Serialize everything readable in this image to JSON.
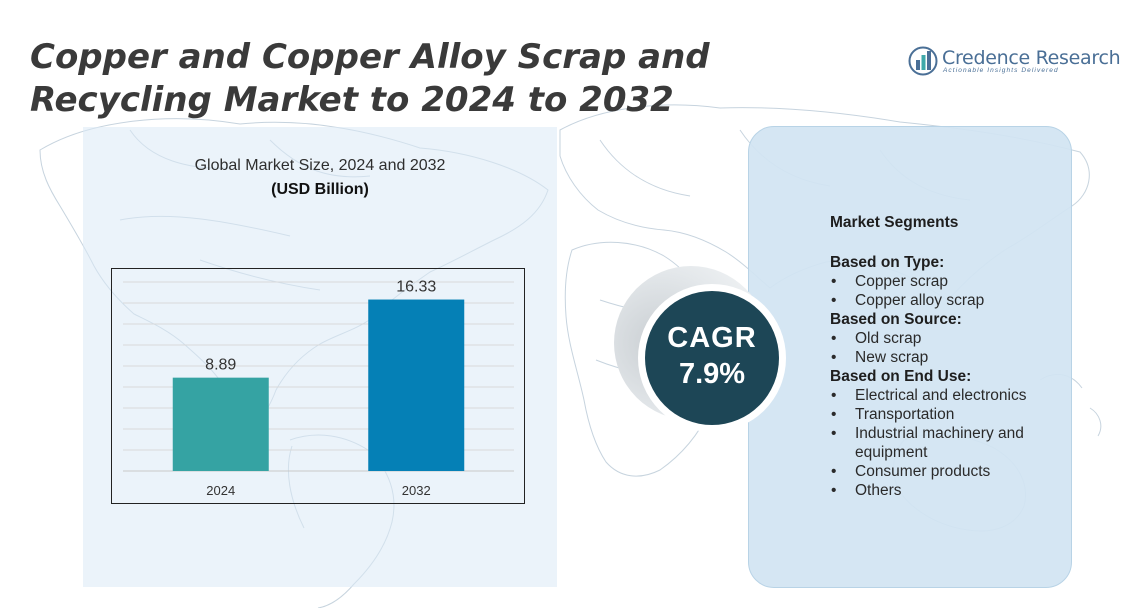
{
  "title": "Copper and Copper Alloy Scrap and Recycling Market to 2024 to 2032",
  "logo": {
    "name": "Credence Research",
    "tagline": "Actionable Insights Delivered"
  },
  "chart_data": {
    "type": "bar",
    "title": "Global Market Size, 2024 and 2032",
    "subtitle": "(USD Billion)",
    "categories": [
      "2024",
      "2032"
    ],
    "values": [
      8.89,
      16.33
    ],
    "data_labels": [
      "8.89",
      "16.33"
    ],
    "colors": [
      "#35a3a3",
      "#0580b6"
    ],
    "ylim": [
      0,
      18
    ],
    "grid": true,
    "xlabel": "",
    "ylabel": ""
  },
  "cagr": {
    "label": "CAGR",
    "value": "7.9%"
  },
  "segments": {
    "heading": "Market Segments",
    "groups": [
      {
        "title": "Based on Type:",
        "items": [
          "Copper scrap",
          "Copper alloy scrap"
        ]
      },
      {
        "title": "Based on Source:",
        "items": [
          "Old scrap",
          "New scrap"
        ]
      },
      {
        "title": "Based on End Use:",
        "items": [
          "Electrical and electronics",
          "Transportation",
          "Industrial machinery and equipment",
          "Consumer products",
          "Others"
        ]
      }
    ]
  },
  "colors": {
    "title_text": "#3a3a3a",
    "brand": "#4a6f96",
    "cagr_circle": "#1d4656",
    "panel_left": "#dae9f5",
    "panel_right": "#d1e4f2"
  },
  "icons": {
    "background": "world-map-outline",
    "logo": "bar-chart-logo-icon"
  }
}
